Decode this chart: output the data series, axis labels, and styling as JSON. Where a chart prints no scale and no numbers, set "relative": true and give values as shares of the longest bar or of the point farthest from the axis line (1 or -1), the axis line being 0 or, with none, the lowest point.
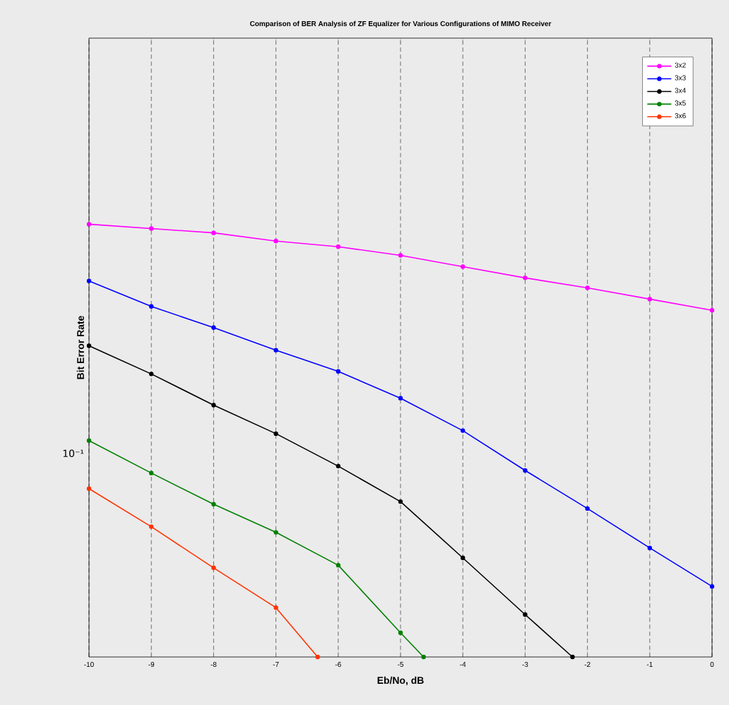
{
  "chart_data": {
    "type": "line",
    "title": "Comparison of BER Analysis of ZF Equalizer for Various Configurations of MIMO Receiver",
    "xlabel": "Eb/No, dB",
    "ylabel": "Bit Error Rate",
    "relative": true,
    "x": [
      -10,
      -9,
      -8,
      -7,
      -6,
      -5,
      -4,
      -3,
      -2,
      -1,
      0
    ],
    "xlim": [
      -10,
      0
    ],
    "xticks": [
      -10,
      -9,
      -8,
      -7,
      -6,
      -5,
      -4,
      -3,
      -2,
      -1,
      0
    ],
    "series": [
      {
        "name": "3x2",
        "color": "#ff00ff",
        "values": [
          1.0,
          0.99,
          0.98,
          0.961,
          0.948,
          0.928,
          0.902,
          0.876,
          0.853,
          0.827,
          0.801
        ]
      },
      {
        "name": "3x3",
        "color": "#0000ff",
        "values": [
          0.869,
          0.81,
          0.761,
          0.709,
          0.66,
          0.598,
          0.523,
          0.431,
          0.343,
          0.252,
          0.163
        ]
      },
      {
        "name": "3x4",
        "color": "#000000",
        "x": [
          -10,
          -9,
          -8,
          -7,
          -6,
          -5,
          -4,
          -3,
          -2.24
        ],
        "values": [
          0.719,
          0.654,
          0.582,
          0.516,
          0.441,
          0.359,
          0.229,
          0.098,
          0.0
        ]
      },
      {
        "name": "3x5",
        "color": "#008000",
        "x": [
          -10,
          -9,
          -8,
          -7,
          -6,
          -5,
          -4.63
        ],
        "values": [
          0.5,
          0.425,
          0.353,
          0.288,
          0.212,
          0.056,
          0.0
        ]
      },
      {
        "name": "3x6",
        "color": "#ff3300",
        "x": [
          -10,
          -9,
          -8,
          -7,
          -6.33
        ],
        "values": [
          0.389,
          0.301,
          0.206,
          0.114,
          0.0
        ]
      }
    ],
    "annotations": [
      "10⁻¹"
    ],
    "grid": "x",
    "legend": "top right",
    "marker": "circle",
    "line_style": "solid"
  }
}
